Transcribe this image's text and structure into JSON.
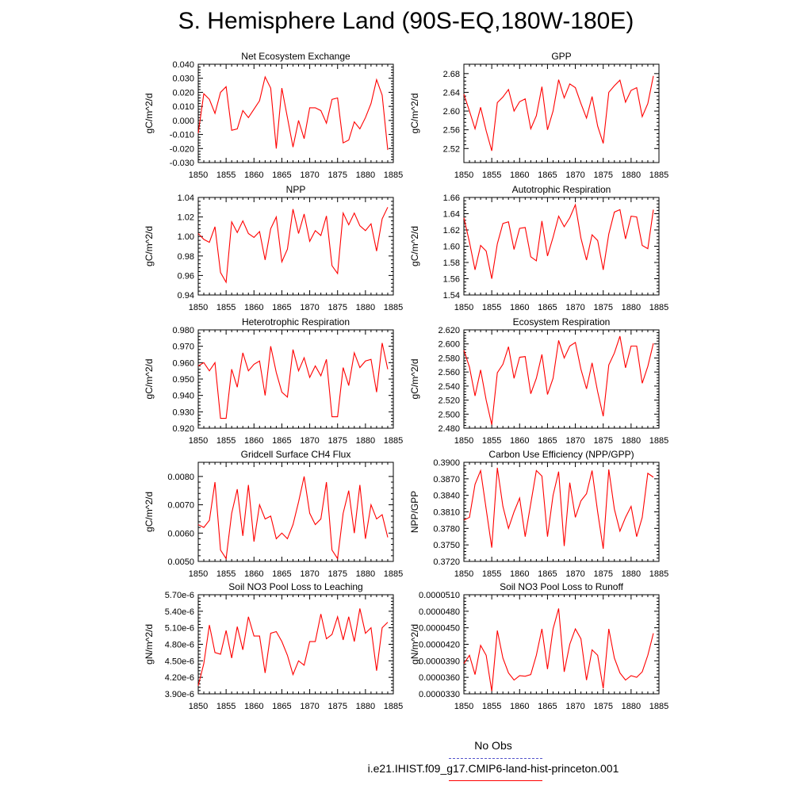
{
  "title": "S. Hemisphere Land (90S-EQ,180W-180E)",
  "legend": {
    "obs_label": "No Obs",
    "run_label": "i.e21.IHIST.f09_g17.CMIP6-land-hist-princeton.001",
    "obs_color": "#5555cc",
    "run_color": "#ff0000"
  },
  "line_color": "#ff0000",
  "chart_data": [
    {
      "type": "line",
      "title": "Net Ecosystem Exchange",
      "ylabel": "gC/m^2/d",
      "xlabel": "",
      "xlim": [
        1850,
        1885
      ],
      "ylim": [
        -0.03,
        0.04
      ],
      "xticks": [
        "1850",
        "1855",
        "1860",
        "1865",
        "1870",
        "1875",
        "1880",
        "1885"
      ],
      "yticks": [
        "0.040",
        "0.030",
        "0.020",
        "0.010",
        "0.000",
        "-0.010",
        "-0.020",
        "-0.030"
      ],
      "x": [
        1850,
        1851,
        1852,
        1853,
        1854,
        1855,
        1856,
        1857,
        1858,
        1859,
        1860,
        1861,
        1862,
        1863,
        1864,
        1865,
        1866,
        1867,
        1868,
        1869,
        1870,
        1871,
        1872,
        1873,
        1874,
        1875,
        1876,
        1877,
        1878,
        1879,
        1880,
        1881,
        1882,
        1883,
        1884
      ],
      "values": [
        -0.009,
        0.019,
        0.015,
        0.005,
        0.02,
        0.024,
        -0.007,
        -0.006,
        0.007,
        0.002,
        0.008,
        0.014,
        0.031,
        0.023,
        -0.02,
        0.023,
        0.002,
        -0.019,
        0.0,
        -0.013,
        0.009,
        0.009,
        0.007,
        -0.002,
        0.015,
        0.016,
        -0.016,
        -0.014,
        -0.001,
        -0.006,
        0.002,
        0.012,
        0.029,
        0.018,
        -0.021
      ]
    },
    {
      "type": "line",
      "title": "GPP",
      "ylabel": "gC/m^2/d",
      "xlabel": "",
      "xlim": [
        1850,
        1885
      ],
      "ylim": [
        2.49,
        2.7
      ],
      "xticks": [
        "1850",
        "1855",
        "1860",
        "1865",
        "1870",
        "1875",
        "1880",
        "1885"
      ],
      "yticks": [
        "2.68",
        "2.64",
        "2.60",
        "2.56",
        "2.52"
      ],
      "x": [
        1850,
        1851,
        1852,
        1853,
        1854,
        1855,
        1856,
        1857,
        1858,
        1859,
        1860,
        1861,
        1862,
        1863,
        1864,
        1865,
        1866,
        1867,
        1868,
        1869,
        1870,
        1871,
        1872,
        1873,
        1874,
        1875,
        1876,
        1877,
        1878,
        1879,
        1880,
        1881,
        1882,
        1883,
        1884
      ],
      "values": [
        2.636,
        2.6,
        2.562,
        2.608,
        2.558,
        2.515,
        2.618,
        2.63,
        2.646,
        2.6,
        2.62,
        2.626,
        2.562,
        2.59,
        2.652,
        2.56,
        2.6,
        2.667,
        2.628,
        2.658,
        2.65,
        2.616,
        2.585,
        2.631,
        2.568,
        2.531,
        2.64,
        2.654,
        2.666,
        2.619,
        2.644,
        2.65,
        2.588,
        2.616,
        2.675
      ]
    },
    {
      "type": "line",
      "title": "NPP",
      "ylabel": "gC/m^2/d",
      "xlabel": "",
      "xlim": [
        1850,
        1885
      ],
      "ylim": [
        0.94,
        1.04
      ],
      "xticks": [
        "1850",
        "1855",
        "1860",
        "1865",
        "1870",
        "1875",
        "1880",
        "1885"
      ],
      "yticks": [
        "1.04",
        "1.02",
        "1.00",
        "0.98",
        "0.96",
        "0.94"
      ],
      "x": [
        1850,
        1851,
        1852,
        1853,
        1854,
        1855,
        1856,
        1857,
        1858,
        1859,
        1860,
        1861,
        1862,
        1863,
        1864,
        1865,
        1866,
        1867,
        1868,
        1869,
        1870,
        1871,
        1872,
        1873,
        1874,
        1875,
        1876,
        1877,
        1878,
        1879,
        1880,
        1881,
        1882,
        1883,
        1884
      ],
      "values": [
        1.003,
        0.997,
        0.994,
        1.01,
        0.963,
        0.953,
        1.015,
        1.004,
        1.016,
        1.003,
        0.999,
        1.005,
        0.976,
        1.008,
        1.02,
        0.974,
        0.987,
        1.028,
        1.003,
        1.023,
        0.995,
        1.006,
        1.001,
        1.021,
        0.97,
        0.962,
        1.024,
        1.012,
        1.024,
        1.011,
        1.006,
        1.013,
        0.985,
        1.018,
        1.03
      ]
    },
    {
      "type": "line",
      "title": "Autotrophic Respiration",
      "ylabel": "gC/m^2/d",
      "xlabel": "",
      "xlim": [
        1850,
        1885
      ],
      "ylim": [
        1.54,
        1.66
      ],
      "xticks": [
        "1850",
        "1855",
        "1860",
        "1865",
        "1870",
        "1875",
        "1880",
        "1885"
      ],
      "yticks": [
        "1.66",
        "1.64",
        "1.62",
        "1.60",
        "1.58",
        "1.56",
        "1.54"
      ],
      "x": [
        1850,
        1851,
        1852,
        1853,
        1854,
        1855,
        1856,
        1857,
        1858,
        1859,
        1860,
        1861,
        1862,
        1863,
        1864,
        1865,
        1866,
        1867,
        1868,
        1869,
        1870,
        1871,
        1872,
        1873,
        1874,
        1875,
        1876,
        1877,
        1878,
        1879,
        1880,
        1881,
        1882,
        1883,
        1884
      ],
      "values": [
        1.635,
        1.605,
        1.571,
        1.601,
        1.594,
        1.56,
        1.603,
        1.628,
        1.63,
        1.596,
        1.622,
        1.623,
        1.587,
        1.582,
        1.631,
        1.588,
        1.611,
        1.637,
        1.624,
        1.635,
        1.651,
        1.61,
        1.583,
        1.614,
        1.607,
        1.571,
        1.615,
        1.642,
        1.645,
        1.609,
        1.637,
        1.636,
        1.601,
        1.597,
        1.645
      ]
    },
    {
      "type": "line",
      "title": "Heterotrophic Respiration",
      "ylabel": "gC/m^2/d",
      "xlabel": "",
      "xlim": [
        1850,
        1885
      ],
      "ylim": [
        0.92,
        0.98
      ],
      "xticks": [
        "1850",
        "1855",
        "1860",
        "1865",
        "1870",
        "1875",
        "1880",
        "1885"
      ],
      "yticks": [
        "0.980",
        "0.970",
        "0.960",
        "0.950",
        "0.940",
        "0.930",
        "0.920"
      ],
      "x": [
        1850,
        1851,
        1852,
        1853,
        1854,
        1855,
        1856,
        1857,
        1858,
        1859,
        1860,
        1861,
        1862,
        1863,
        1864,
        1865,
        1866,
        1867,
        1868,
        1869,
        1870,
        1871,
        1872,
        1873,
        1874,
        1875,
        1876,
        1877,
        1878,
        1879,
        1880,
        1881,
        1882,
        1883,
        1884
      ],
      "values": [
        0.958,
        0.96,
        0.955,
        0.96,
        0.926,
        0.926,
        0.956,
        0.945,
        0.966,
        0.955,
        0.959,
        0.961,
        0.94,
        0.97,
        0.954,
        0.942,
        0.939,
        0.968,
        0.955,
        0.963,
        0.951,
        0.958,
        0.952,
        0.962,
        0.927,
        0.927,
        0.957,
        0.946,
        0.966,
        0.957,
        0.961,
        0.962,
        0.942,
        0.972,
        0.956
      ]
    },
    {
      "type": "line",
      "title": "Ecosystem Respiration",
      "ylabel": "gC/m^2/d",
      "xlabel": "",
      "xlim": [
        1850,
        1885
      ],
      "ylim": [
        2.48,
        2.62
      ],
      "xticks": [
        "1850",
        "1855",
        "1860",
        "1865",
        "1870",
        "1875",
        "1880",
        "1885"
      ],
      "yticks": [
        "2.620",
        "2.600",
        "2.580",
        "2.560",
        "2.540",
        "2.520",
        "2.500",
        "2.480"
      ],
      "x": [
        1850,
        1851,
        1852,
        1853,
        1854,
        1855,
        1856,
        1857,
        1858,
        1859,
        1860,
        1861,
        1862,
        1863,
        1864,
        1865,
        1866,
        1867,
        1868,
        1869,
        1870,
        1871,
        1872,
        1873,
        1874,
        1875,
        1876,
        1877,
        1878,
        1879,
        1880,
        1881,
        1882,
        1883,
        1884
      ],
      "values": [
        2.591,
        2.567,
        2.526,
        2.563,
        2.52,
        2.485,
        2.559,
        2.571,
        2.596,
        2.551,
        2.581,
        2.582,
        2.529,
        2.551,
        2.585,
        2.528,
        2.551,
        2.605,
        2.58,
        2.597,
        2.602,
        2.564,
        2.536,
        2.573,
        2.532,
        2.497,
        2.57,
        2.587,
        2.611,
        2.566,
        2.597,
        2.597,
        2.544,
        2.568,
        2.601
      ]
    },
    {
      "type": "line",
      "title": "Gridcell Surface CH4 Flux",
      "ylabel": "gC/m^2/d",
      "xlabel": "",
      "xlim": [
        1850,
        1885
      ],
      "ylim": [
        0.005,
        0.0085
      ],
      "xticks": [
        "1850",
        "1855",
        "1860",
        "1865",
        "1870",
        "1875",
        "1880",
        "1885"
      ],
      "yticks": [
        "0.0080",
        "0.0070",
        "0.0060",
        "0.0050"
      ],
      "x": [
        1850,
        1851,
        1852,
        1853,
        1854,
        1855,
        1856,
        1857,
        1858,
        1859,
        1860,
        1861,
        1862,
        1863,
        1864,
        1865,
        1866,
        1867,
        1868,
        1869,
        1870,
        1871,
        1872,
        1873,
        1874,
        1875,
        1876,
        1877,
        1878,
        1879,
        1880,
        1881,
        1882,
        1883,
        1884
      ],
      "values": [
        0.0063,
        0.0062,
        0.00645,
        0.0078,
        0.0054,
        0.0051,
        0.0067,
        0.00755,
        0.0059,
        0.0077,
        0.0057,
        0.007,
        0.0065,
        0.0066,
        0.0058,
        0.006,
        0.0058,
        0.0063,
        0.0071,
        0.008,
        0.0067,
        0.0063,
        0.0065,
        0.0078,
        0.0054,
        0.0051,
        0.0067,
        0.0075,
        0.006,
        0.0077,
        0.0058,
        0.007,
        0.0065,
        0.00665,
        0.00585
      ]
    },
    {
      "type": "line",
      "title": "Carbon Use Efficiency (NPP/GPP)",
      "ylabel": "NPP/GPP",
      "xlabel": "",
      "xlim": [
        1850,
        1885
      ],
      "ylim": [
        0.372,
        0.39
      ],
      "xticks": [
        "1850",
        "1855",
        "1860",
        "1865",
        "1870",
        "1875",
        "1880",
        "1885"
      ],
      "yticks": [
        "0.3900",
        "0.3870",
        "0.3840",
        "0.3810",
        "0.3780",
        "0.3750",
        "0.3720"
      ],
      "x": [
        1850,
        1851,
        1852,
        1853,
        1854,
        1855,
        1856,
        1857,
        1858,
        1859,
        1860,
        1861,
        1862,
        1863,
        1864,
        1865,
        1866,
        1867,
        1868,
        1869,
        1870,
        1871,
        1872,
        1873,
        1874,
        1875,
        1876,
        1877,
        1878,
        1879,
        1880,
        1881,
        1882,
        1883,
        1884
      ],
      "values": [
        0.3795,
        0.38,
        0.386,
        0.3885,
        0.3815,
        0.3745,
        0.389,
        0.382,
        0.378,
        0.381,
        0.3835,
        0.3765,
        0.3825,
        0.3885,
        0.3875,
        0.3765,
        0.384,
        0.3883,
        0.3748,
        0.3863,
        0.38,
        0.383,
        0.3843,
        0.3885,
        0.381,
        0.3743,
        0.3887,
        0.3815,
        0.3775,
        0.38,
        0.382,
        0.3765,
        0.38,
        0.388,
        0.3873
      ]
    },
    {
      "type": "line",
      "title": "Soil NO3 Pool Loss to Leaching",
      "ylabel": "gN/m^2/d",
      "xlabel": "",
      "xlim": [
        1850,
        1885
      ],
      "ylim": [
        3.9e-06,
        5.7e-06
      ],
      "xticks": [
        "1850",
        "1855",
        "1860",
        "1865",
        "1870",
        "1875",
        "1880",
        "1885"
      ],
      "yticks": [
        "5.70e-6",
        "5.40e-6",
        "5.10e-6",
        "4.80e-6",
        "4.50e-6",
        "4.20e-6",
        "3.90e-6"
      ],
      "x": [
        1850,
        1851,
        1852,
        1853,
        1854,
        1855,
        1856,
        1857,
        1858,
        1859,
        1860,
        1861,
        1862,
        1863,
        1864,
        1865,
        1866,
        1867,
        1868,
        1869,
        1870,
        1871,
        1872,
        1873,
        1874,
        1875,
        1876,
        1877,
        1878,
        1879,
        1880,
        1881,
        1882,
        1883,
        1884
      ],
      "values": [
        4.05e-06,
        4.45e-06,
        5.15e-06,
        4.65e-06,
        4.62e-06,
        5.05e-06,
        4.55e-06,
        5.12e-06,
        4.7e-06,
        5.3e-06,
        4.95e-06,
        4.95e-06,
        4.28e-06,
        5e-06,
        5.03e-06,
        4.85e-06,
        4.6e-06,
        4.25e-06,
        4.5e-06,
        4.42e-06,
        4.85e-06,
        4.85e-06,
        5.35e-06,
        4.9e-06,
        4.98e-06,
        5.3e-06,
        4.88e-06,
        5.3e-06,
        4.85e-06,
        5.45e-06,
        5e-06,
        5.1e-06,
        4.32e-06,
        5.1e-06,
        5.2e-06
      ]
    },
    {
      "type": "line",
      "title": "Soil NO3 Pool Loss to Runoff",
      "ylabel": "gN/m^2/d",
      "xlabel": "",
      "xlim": [
        1850,
        1885
      ],
      "ylim": [
        3.3e-05,
        5.1e-05
      ],
      "xticks": [
        "1850",
        "1855",
        "1860",
        "1865",
        "1870",
        "1875",
        "1880",
        "1885"
      ],
      "yticks": [
        "0.0000510",
        "0.0000480",
        "0.0000450",
        "0.0000420",
        "0.0000390",
        "0.0000360",
        "0.0000330"
      ],
      "x": [
        1850,
        1851,
        1852,
        1853,
        1854,
        1855,
        1856,
        1857,
        1858,
        1859,
        1860,
        1861,
        1862,
        1863,
        1864,
        1865,
        1866,
        1867,
        1868,
        1869,
        1870,
        1871,
        1872,
        1873,
        1874,
        1875,
        1876,
        1877,
        1878,
        1879,
        1880,
        1881,
        1882,
        1883,
        1884
      ],
      "values": [
        3.85e-05,
        4e-05,
        3.65e-05,
        4.18e-05,
        4e-05,
        3.35e-05,
        4.45e-05,
        3.95e-05,
        3.68e-05,
        3.55e-05,
        3.63e-05,
        3.62e-05,
        3.65e-05,
        4e-05,
        4.48e-05,
        3.75e-05,
        4.48e-05,
        4.85e-05,
        3.7e-05,
        4.2e-05,
        4.48e-05,
        4.3e-05,
        3.55e-05,
        4.1e-05,
        4e-05,
        3.4e-05,
        4.48e-05,
        3.95e-05,
        3.68e-05,
        3.55e-05,
        3.63e-05,
        3.6e-05,
        3.7e-05,
        4e-05,
        4.4e-05
      ]
    }
  ]
}
